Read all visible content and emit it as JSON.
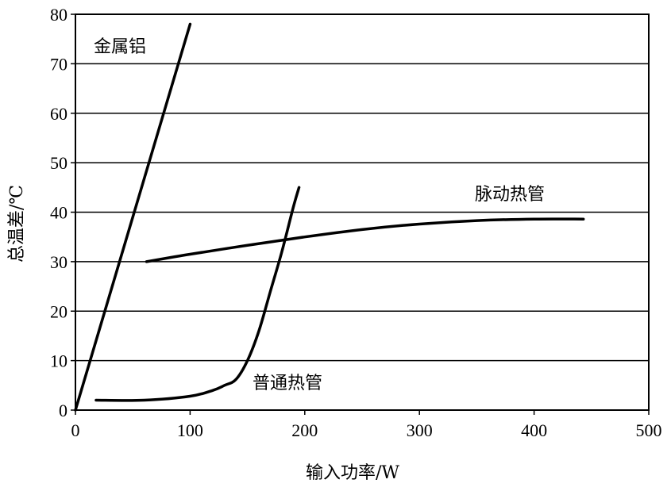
{
  "chart_data": {
    "type": "line",
    "xlabel": "输入功率/W",
    "ylabel": "总温差/℃",
    "xlim": [
      0,
      500
    ],
    "ylim": [
      0,
      80
    ],
    "x_ticks": [
      "0",
      "100",
      "200",
      "300",
      "400",
      "500"
    ],
    "y_ticks": [
      "0",
      "10",
      "20",
      "30",
      "40",
      "50",
      "60",
      "70",
      "80"
    ],
    "grid": "horizontal",
    "legend": "none (inline labels)",
    "series": [
      {
        "name": "金属铝",
        "x": [
          0,
          100
        ],
        "y": [
          0,
          78
        ]
      },
      {
        "name": "普通热管",
        "x": [
          18,
          60,
          100,
          120,
          130,
          140,
          150,
          160,
          170,
          180,
          190,
          195
        ],
        "y": [
          2,
          2,
          2.8,
          4,
          5,
          6.2,
          10,
          16,
          24,
          32,
          41,
          45
        ]
      },
      {
        "name": "脉动热管",
        "x": [
          62,
          100,
          150,
          200,
          250,
          300,
          350,
          400,
          443
        ],
        "y": [
          30,
          31.5,
          33.3,
          35,
          36.5,
          37.6,
          38.3,
          38.6,
          38.6
        ]
      }
    ]
  }
}
